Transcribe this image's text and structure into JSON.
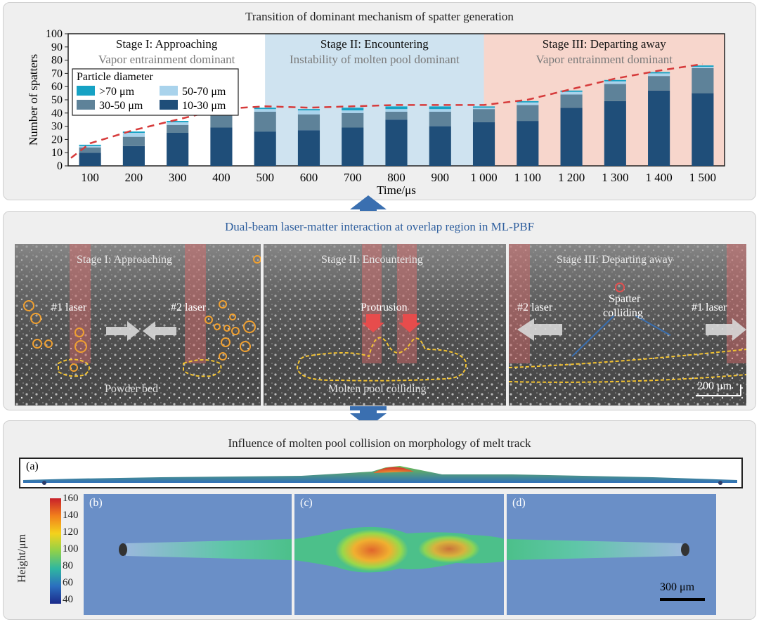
{
  "panel1": {
    "title": "Transition of dominant mechanism of spatter generation",
    "stages": [
      {
        "title": "Stage I: Approaching",
        "subtitle": "Vapor entrainment dominant"
      },
      {
        "title": "Stage II: Encountering",
        "subtitle": "Instability of molten pool dominant"
      },
      {
        "title": "Stage III: Departing away",
        "subtitle": "Vapor entrainment dominant"
      }
    ],
    "stage_colors": [
      "#ffffff",
      "#cfe3f0",
      "#f7d6cc"
    ]
  },
  "panel2": {
    "title": "Dual-beam laser-matter interaction at overlap region in ML-PBF",
    "title_color": "#2f5f9e",
    "images": [
      {
        "stage": "Stage I: Approaching",
        "labels": [
          "#1 laser",
          "#2 laser",
          "Powder bed"
        ]
      },
      {
        "stage": "Stage II: Encountering",
        "labels": [
          "Protrusion",
          "Molten pool colliding"
        ]
      },
      {
        "stage": "Stage III: Departing away",
        "labels": [
          "#2 laser",
          "#1 laser",
          "Spatter",
          "colliding"
        ],
        "scale": "200 μm"
      }
    ]
  },
  "panel3": {
    "title": "Influence of molten pool collision on morphology of melt track",
    "sublabels": [
      "(a)",
      "(b)",
      "(c)",
      "(d)"
    ],
    "colorbar": {
      "label": "Height/μm",
      "ticks": [
        "160",
        "140",
        "120",
        "100",
        "80",
        "60",
        "40"
      ]
    },
    "scale": "300 μm"
  },
  "arrow_color": "#3a6fb0",
  "chart_data": {
    "type": "bar",
    "stacked": true,
    "title": "",
    "xlabel": "Time/μs",
    "ylabel": "Number of spatters",
    "ylim": [
      0,
      100
    ],
    "yticks": [
      0,
      10,
      20,
      30,
      40,
      50,
      60,
      70,
      80,
      90,
      100
    ],
    "categories": [
      "100",
      "200",
      "300",
      "400",
      "500",
      "600",
      "700",
      "800",
      "900",
      "1 000",
      "1 100",
      "1 200",
      "1 300",
      "1 400",
      "1 500"
    ],
    "legend_title": "Particle diameter",
    "legend_placement": "top-left",
    "series": [
      {
        "name": "10-30 μm",
        "color": "#1f4e79",
        "values": [
          10,
          15,
          25,
          29,
          26,
          27,
          29,
          35,
          30,
          33,
          34,
          44,
          49,
          57,
          55
        ]
      },
      {
        "name": "30-50 μm",
        "color": "#5e8299",
        "values": [
          4,
          7,
          6,
          10,
          15,
          12,
          11,
          6,
          11,
          10,
          12,
          10,
          13,
          11,
          19
        ]
      },
      {
        "name": "50-70 μm",
        "color": "#a9d3ec",
        "values": [
          1,
          3,
          2,
          2,
          2,
          3,
          2,
          2,
          2,
          1,
          2,
          2,
          2,
          2,
          1
        ]
      },
      {
        "name": ">70 μm",
        "color": "#16a2c4",
        "values": [
          1,
          1,
          1,
          1,
          1,
          1,
          2,
          2,
          2,
          1,
          1,
          1,
          1,
          1,
          1
        ]
      }
    ],
    "trend_line": {
      "style": "dashed",
      "color": "#d63b3b"
    },
    "stage_regions": [
      {
        "from": "100",
        "to": "500"
      },
      {
        "from": "500",
        "to": "1 000"
      },
      {
        "from": "1 000",
        "to": "1 500"
      }
    ]
  }
}
